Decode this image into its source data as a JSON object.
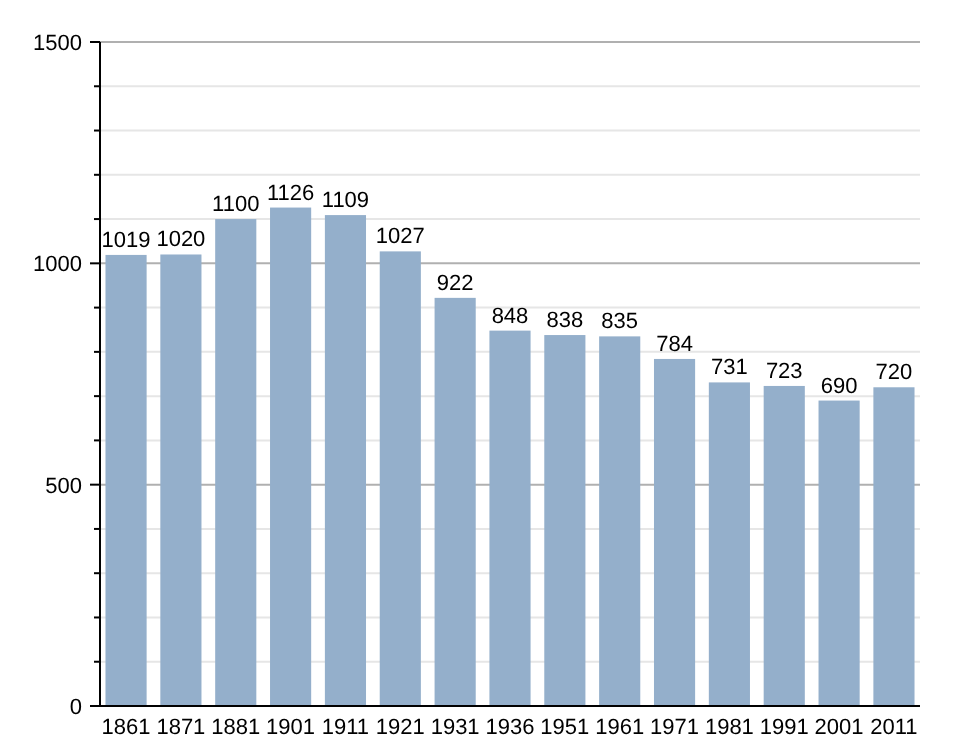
{
  "chart_data": {
    "type": "bar",
    "categories": [
      "1861",
      "1871",
      "1881",
      "1901",
      "1911",
      "1921",
      "1931",
      "1936",
      "1951",
      "1961",
      "1971",
      "1981",
      "1991",
      "2001",
      "2011"
    ],
    "values": [
      1019,
      1020,
      1100,
      1126,
      1109,
      1027,
      922,
      848,
      838,
      835,
      784,
      731,
      723,
      690,
      720
    ],
    "color": "#94afcb",
    "data_labels": true,
    "grid": true,
    "ylim": [
      0,
      1500
    ],
    "yticks": [
      0,
      {
        "value": 100,
        "label": null
      },
      {
        "value": 200,
        "label": null
      },
      {
        "value": 300,
        "label": null
      },
      {
        "value": 400,
        "label": null
      },
      500,
      {
        "value": 600,
        "label": null
      },
      {
        "value": 700,
        "label": null
      },
      {
        "value": 800,
        "label": null
      },
      {
        "value": 900,
        "label": null
      },
      1000,
      {
        "value": 1100,
        "label": null
      },
      {
        "value": 1200,
        "label": null
      },
      {
        "value": 1300,
        "label": null
      },
      {
        "value": 1400,
        "label": null
      },
      1500
    ]
  }
}
